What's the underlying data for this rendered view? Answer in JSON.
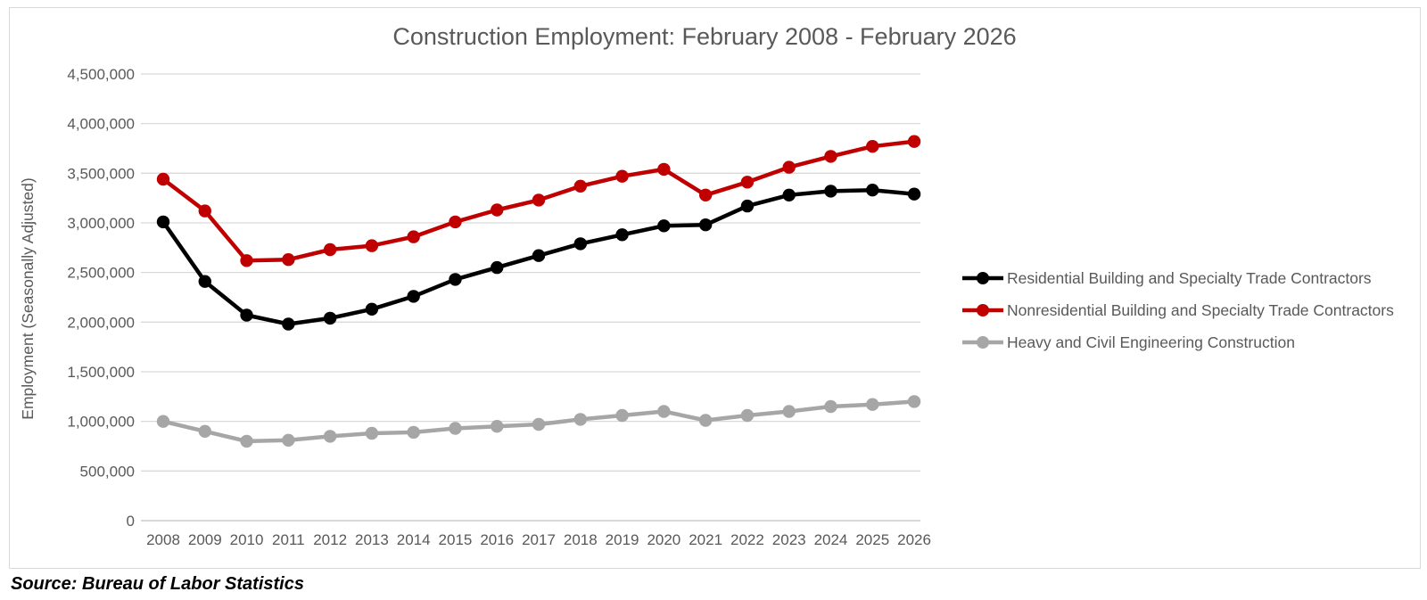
{
  "title": "Construction Employment: February 2008 - February 2026",
  "source_note": "Source: Bureau of Labor Statistics",
  "colors": {
    "title_text": "#595959",
    "axis_text": "#595959",
    "gridline": "#D9D9D9",
    "axis_line": "#BFBFBF",
    "series_residential": "#000000",
    "series_nonresidential": "#C00000",
    "series_heavy_civil": "#A6A6A6",
    "legend_text": "#595959",
    "frame_border": "#D9D9D9"
  },
  "chart_data": {
    "type": "line",
    "title": "Construction Employment: February 2008 - February 2026",
    "xlabel": "",
    "ylabel": "Employment (Seasonally Adjusted)",
    "x": [
      2008,
      2009,
      2010,
      2011,
      2012,
      2013,
      2014,
      2015,
      2016,
      2017,
      2018,
      2019,
      2020,
      2021,
      2022,
      2023,
      2024,
      2025,
      2026
    ],
    "series": [
      {
        "name": "Residential Building and Specialty Trade Contractors",
        "color": "#000000",
        "values": [
          3010000,
          2410000,
          2070000,
          1980000,
          2040000,
          2130000,
          2260000,
          2430000,
          2550000,
          2670000,
          2790000,
          2880000,
          2970000,
          2980000,
          3170000,
          3280000,
          3320000,
          3330000,
          3290000
        ]
      },
      {
        "name": "Nonresidential Building and Specialty Trade Contractors",
        "color": "#C00000",
        "values": [
          3440000,
          3120000,
          2620000,
          2630000,
          2730000,
          2770000,
          2860000,
          3010000,
          3130000,
          3230000,
          3370000,
          3470000,
          3540000,
          3280000,
          3410000,
          3560000,
          3670000,
          3770000,
          3820000
        ]
      },
      {
        "name": "Heavy and Civil Engineering Construction",
        "color": "#A6A6A6",
        "values": [
          1000000,
          900000,
          800000,
          810000,
          850000,
          880000,
          890000,
          930000,
          950000,
          970000,
          1020000,
          1060000,
          1100000,
          1010000,
          1060000,
          1100000,
          1150000,
          1170000,
          1200000
        ]
      }
    ],
    "ylim": [
      0,
      4500000
    ],
    "ytick_step": 500000,
    "ytick_labels": [
      "0",
      "500,000",
      "1,000,000",
      "1,500,000",
      "2,000,000",
      "2,500,000",
      "3,000,000",
      "3,500,000",
      "4,000,000",
      "4,500,000"
    ],
    "grid": true,
    "legend_position": "right",
    "marker": "circle"
  }
}
